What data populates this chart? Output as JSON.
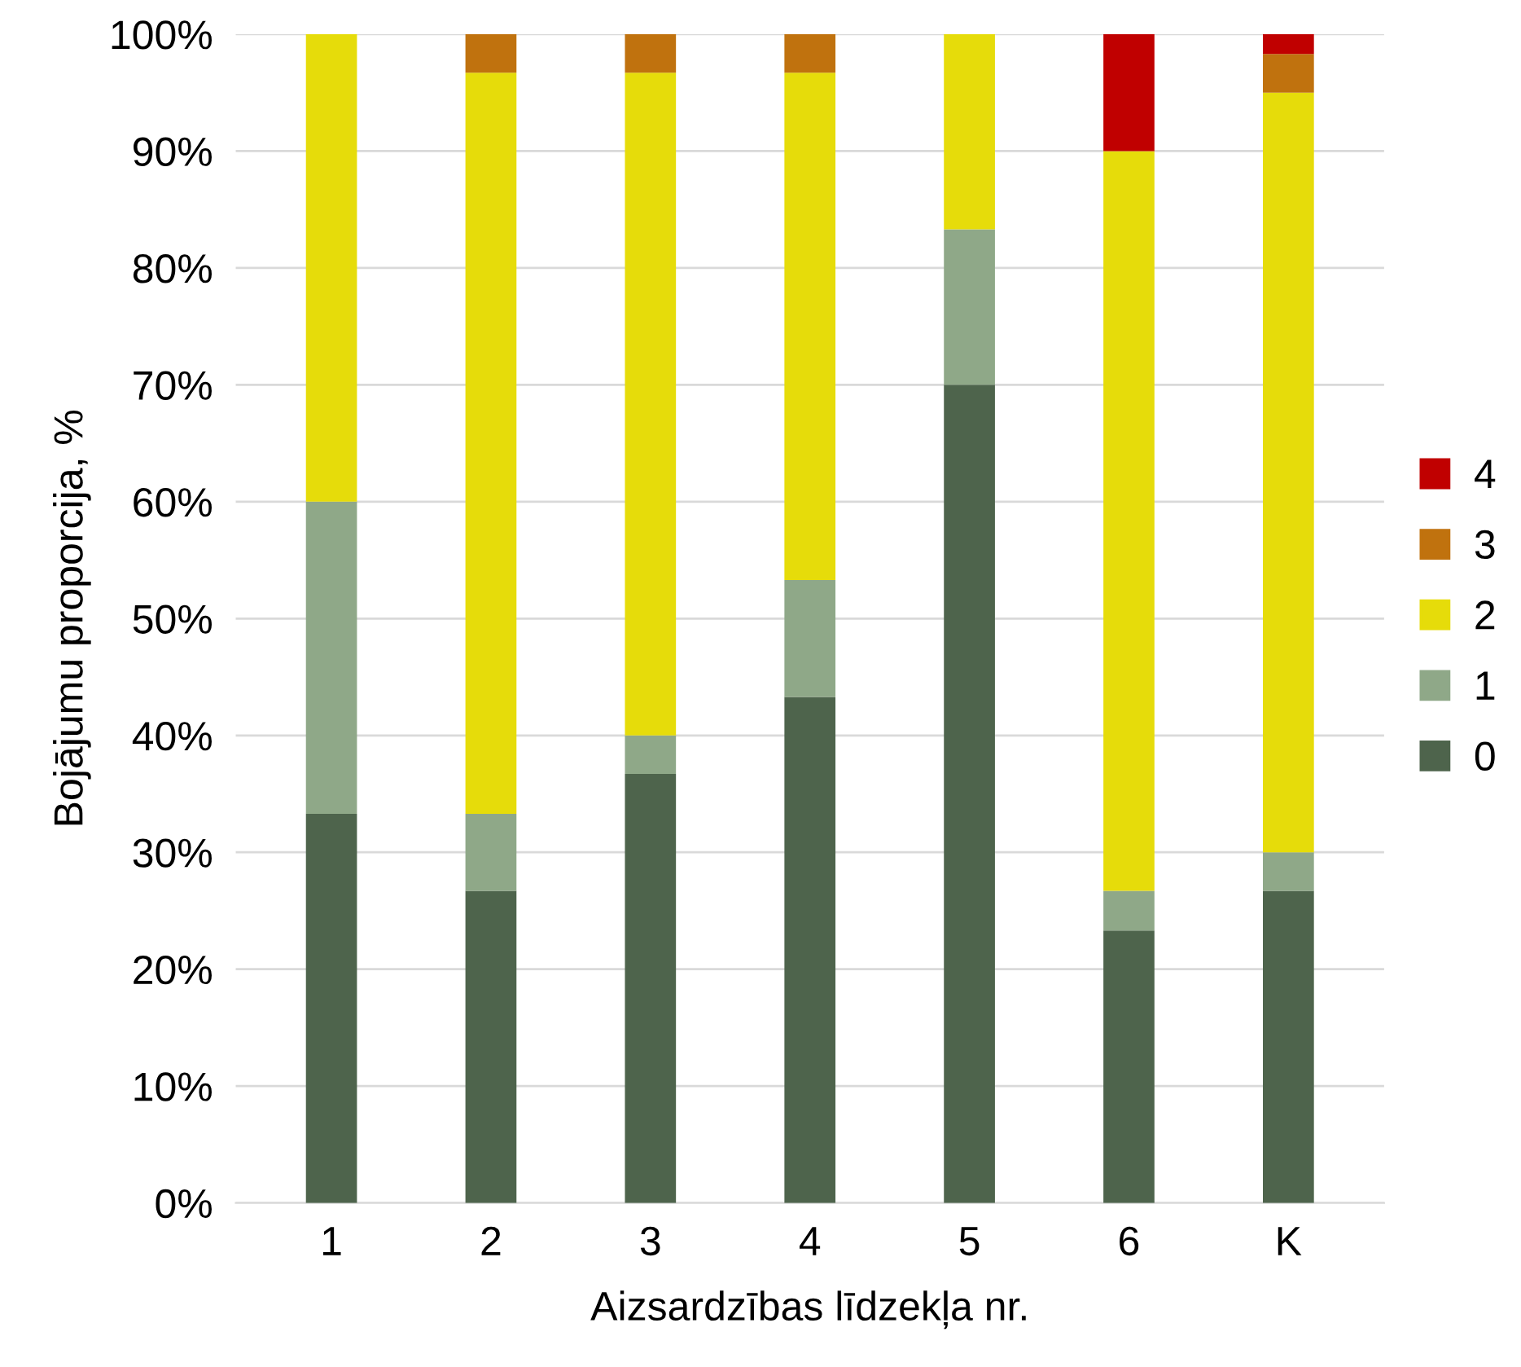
{
  "chart_data": {
    "type": "bar",
    "stacked": true,
    "xlabel": "Aizsardzības līdzekļa nr.",
    "ylabel": "Bojājumu proporcija, %",
    "categories": [
      "1",
      "2",
      "3",
      "4",
      "5",
      "6",
      "K"
    ],
    "series": [
      {
        "name": "0",
        "color": "#4e644c",
        "values": [
          33.3,
          26.7,
          36.7,
          43.3,
          70,
          23.3,
          26.7
        ]
      },
      {
        "name": "1",
        "color": "#8fa888",
        "values": [
          26.7,
          6.6,
          3.3,
          10,
          13.3,
          3.4,
          3.3
        ]
      },
      {
        "name": "2",
        "color": "#e6dc0a",
        "values": [
          40,
          63.4,
          56.7,
          43.4,
          16.7,
          63.3,
          65
        ]
      },
      {
        "name": "3",
        "color": "#c0720e",
        "values": [
          0,
          3.3,
          3.3,
          3.3,
          0,
          0,
          3.3
        ]
      },
      {
        "name": "4",
        "color": "#c00000",
        "values": [
          0,
          0,
          0,
          0,
          0,
          10,
          1.7
        ]
      }
    ],
    "ylim": [
      0,
      100
    ],
    "yticks": [
      {
        "value": 0,
        "label": "0%"
      },
      {
        "value": 10,
        "label": "10%"
      },
      {
        "value": 20,
        "label": "20%"
      },
      {
        "value": 30,
        "label": "30%"
      },
      {
        "value": 40,
        "label": "40%"
      },
      {
        "value": 50,
        "label": "50%"
      },
      {
        "value": 60,
        "label": "60%"
      },
      {
        "value": 70,
        "label": "70%"
      },
      {
        "value": 80,
        "label": "80%"
      },
      {
        "value": 90,
        "label": "90%"
      },
      {
        "value": 100,
        "label": "100%"
      }
    ],
    "grid": "y",
    "legend": "right"
  }
}
